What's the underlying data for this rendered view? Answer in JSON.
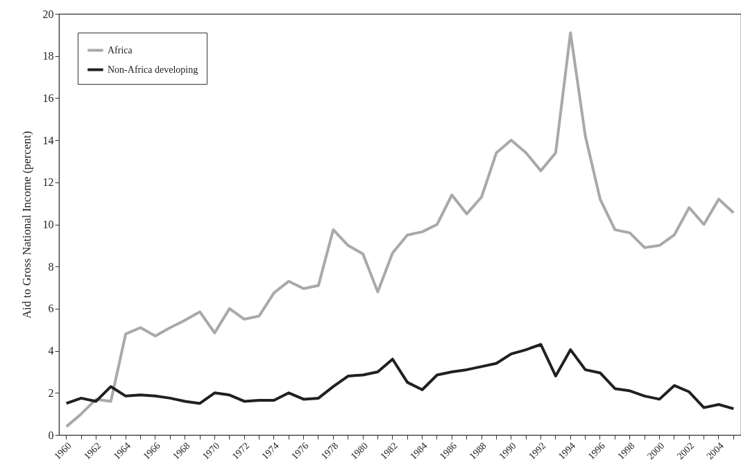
{
  "chart_data": {
    "type": "line",
    "ylabel": "Aid to Gross National Income (percent)",
    "categories": [
      "1960",
      null,
      "1962",
      null,
      "1964",
      null,
      "1966",
      null,
      "1968",
      null,
      "1970",
      null,
      "1972",
      null,
      "1974",
      null,
      "1976",
      null,
      "1978",
      null,
      "1980",
      null,
      "1982",
      null,
      "1984",
      null,
      "1986",
      null,
      "1988",
      null,
      "1990",
      null,
      "1992",
      null,
      "1994",
      null,
      "1996",
      null,
      "1998",
      null,
      "2000",
      null,
      "2002",
      null,
      "2004",
      null
    ],
    "series": [
      {
        "name": "Africa",
        "color": "#a8a9ab",
        "values": [
          0.4,
          1.0,
          1.7,
          1.6,
          4.8,
          5.1,
          4.7,
          5.1,
          5.45,
          5.85,
          4.85,
          6.0,
          5.5,
          5.65,
          6.75,
          7.3,
          6.95,
          7.1,
          9.75,
          9.0,
          8.6,
          6.8,
          8.65,
          9.5,
          9.65,
          10.0,
          11.4,
          10.5,
          11.3,
          13.4,
          14.0,
          13.4,
          12.55,
          13.4,
          19.1,
          14.2,
          11.2,
          9.75,
          9.6,
          8.9,
          9.0,
          9.5,
          10.8,
          10.0,
          11.2,
          10.55
        ]
      },
      {
        "name": "Non-Africa developing",
        "color": "#231f20",
        "values": [
          1.5,
          1.75,
          1.6,
          2.3,
          1.85,
          1.9,
          1.85,
          1.75,
          1.6,
          1.5,
          2.0,
          1.9,
          1.6,
          1.65,
          1.65,
          2.0,
          1.7,
          1.75,
          2.3,
          2.8,
          2.85,
          3.0,
          3.6,
          2.5,
          2.15,
          2.85,
          3.0,
          3.1,
          3.25,
          3.4,
          3.85,
          4.05,
          4.3,
          2.8,
          4.05,
          3.1,
          2.95,
          2.2,
          2.1,
          1.85,
          1.7,
          2.35,
          2.05,
          1.3,
          1.45,
          1.25
        ]
      }
    ],
    "ylim": [
      0,
      20
    ],
    "yticks": [
      0,
      2,
      4,
      6,
      8,
      10,
      12,
      14,
      16,
      18,
      20
    ],
    "grid": false,
    "legend": "top left",
    "line_style": "solid",
    "marker": "none"
  }
}
